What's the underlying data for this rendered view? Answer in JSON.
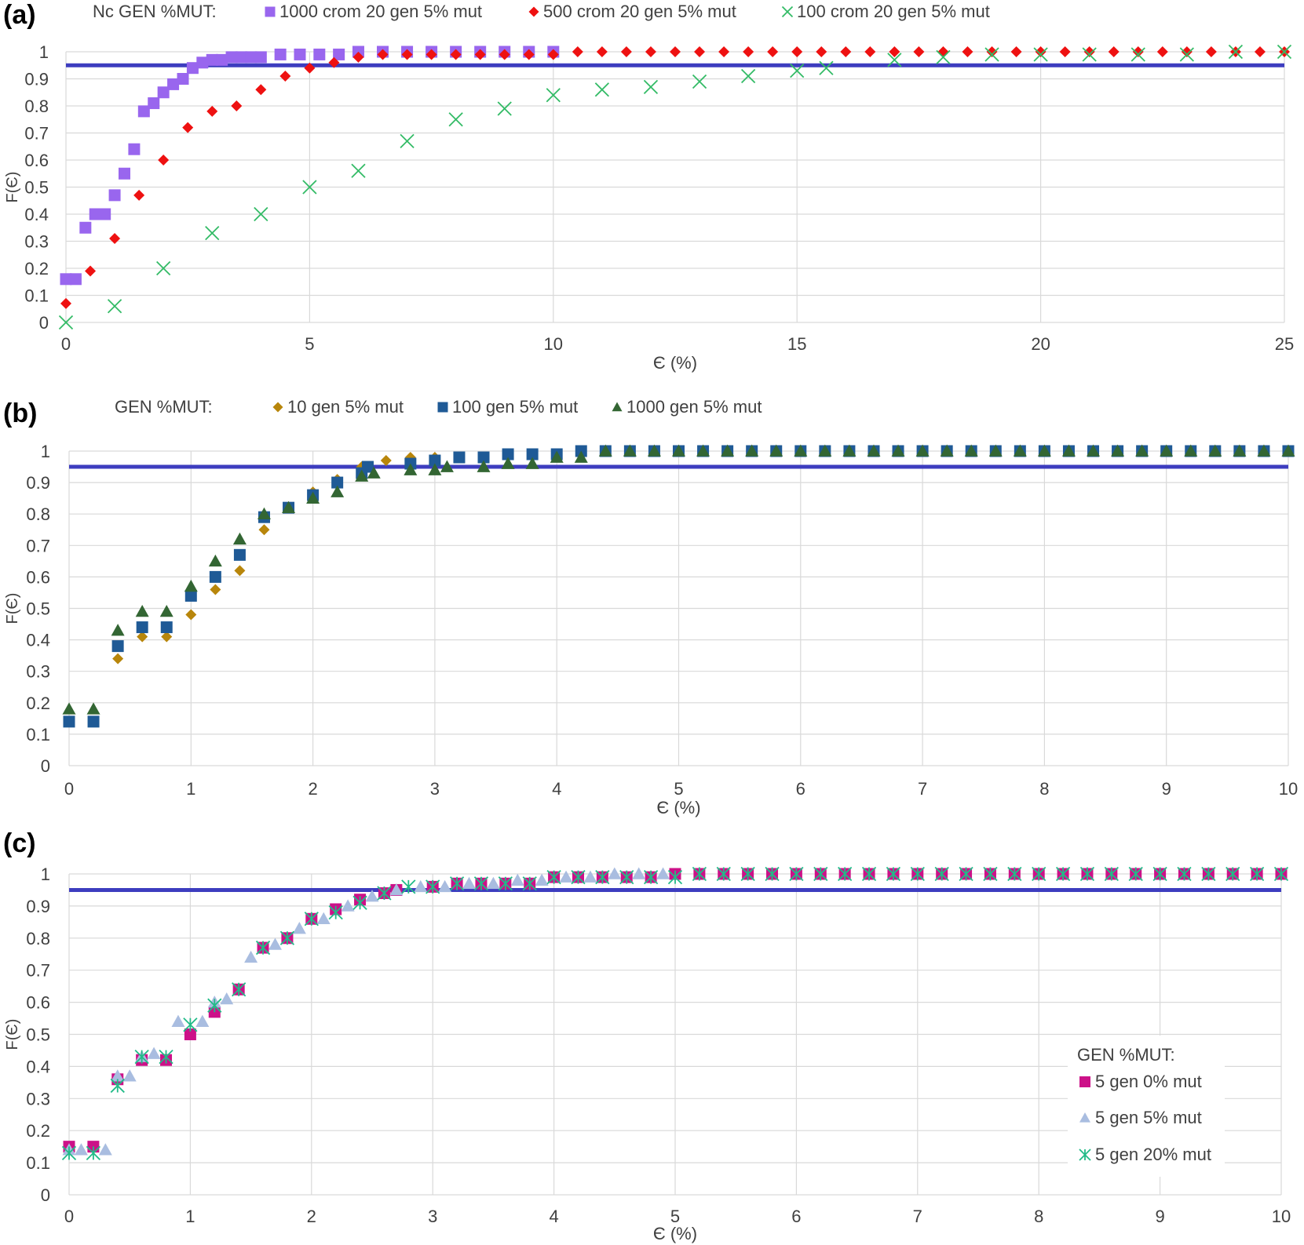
{
  "chart_data": [
    {
      "panel_label": "(a)",
      "type": "scatter",
      "xlabel": "Є (%)",
      "ylabel": "F(Є)",
      "xlim": [
        0,
        25
      ],
      "ylim": [
        0,
        1
      ],
      "xticks": [
        0,
        5,
        10,
        15,
        20,
        25
      ],
      "yticks": [
        0,
        0.1,
        0.2,
        0.3,
        0.4,
        0.5,
        0.6,
        0.7,
        0.8,
        0.9,
        1
      ],
      "grid": true,
      "legend_title": "Nc  GEN  %MUT:",
      "legend_position": "top",
      "reference_line": {
        "y": 0.95,
        "color": "#3d3dbf"
      },
      "series": [
        {
          "name": "1000 crom 20 gen 5% mut",
          "marker": "square",
          "color": "#9966ee",
          "x": [
            0,
            0.2,
            0.4,
            0.6,
            0.8,
            1.0,
            1.2,
            1.4,
            1.6,
            1.8,
            2.0,
            2.2,
            2.4,
            2.6,
            2.8,
            3.0,
            3.2,
            3.4,
            3.6,
            3.8,
            4.0,
            4.4,
            4.8,
            5.2,
            5.6,
            6.0,
            6.5,
            7.0,
            7.5,
            8.0,
            8.5,
            9.0,
            9.5,
            10.0
          ],
          "y": [
            0.16,
            0.16,
            0.35,
            0.4,
            0.4,
            0.47,
            0.55,
            0.64,
            0.78,
            0.81,
            0.85,
            0.88,
            0.9,
            0.94,
            0.96,
            0.97,
            0.97,
            0.98,
            0.98,
            0.98,
            0.98,
            0.99,
            0.99,
            0.99,
            0.99,
            1,
            1,
            1,
            1,
            1,
            1,
            1,
            1,
            1
          ]
        },
        {
          "name": "500 crom 20 gen 5% mut",
          "marker": "diamond",
          "color": "#ee1111",
          "x": [
            0,
            0.5,
            1.0,
            1.5,
            2.0,
            2.5,
            3.0,
            3.5,
            4.0,
            4.5,
            5.0,
            5.5,
            6.0,
            6.5,
            7.0,
            7.5,
            8.0,
            8.5,
            9.0,
            9.5,
            10.0,
            10.5,
            11.0,
            11.5,
            12.0,
            12.5,
            13.0,
            13.5,
            14.0,
            14.5,
            15.0,
            15.5,
            16.0,
            16.5,
            17.0,
            17.5,
            18.0,
            18.5,
            19.0,
            19.5,
            20.0,
            20.5,
            21.0,
            21.5,
            22.0,
            22.5,
            23.0,
            23.5,
            24.0,
            24.5,
            25.0
          ],
          "y": [
            0.07,
            0.19,
            0.31,
            0.47,
            0.6,
            0.72,
            0.78,
            0.8,
            0.86,
            0.91,
            0.94,
            0.96,
            0.98,
            0.99,
            0.99,
            0.99,
            0.99,
            0.99,
            0.99,
            0.99,
            0.99,
            1,
            1,
            1,
            1,
            1,
            1,
            1,
            1,
            1,
            1,
            1,
            1,
            1,
            1,
            1,
            1,
            1,
            1,
            1,
            1,
            1,
            1,
            1,
            1,
            1,
            1,
            1,
            1,
            1,
            1
          ]
        },
        {
          "name": "100 crom 20 gen 5% mut",
          "marker": "x",
          "color": "#33bb66",
          "x": [
            0,
            1,
            2,
            3,
            4,
            5,
            6,
            7,
            8,
            9,
            10,
            11,
            12,
            13,
            14,
            15,
            15.6,
            17,
            18,
            19,
            20,
            21,
            22,
            23,
            24,
            25
          ],
          "y": [
            0,
            0.06,
            0.2,
            0.33,
            0.4,
            0.5,
            0.56,
            0.67,
            0.75,
            0.79,
            0.84,
            0.86,
            0.87,
            0.89,
            0.91,
            0.93,
            0.94,
            0.97,
            0.98,
            0.99,
            0.99,
            0.99,
            0.99,
            0.99,
            1,
            1
          ]
        }
      ]
    },
    {
      "panel_label": "(b)",
      "type": "scatter",
      "xlabel": "Є (%)",
      "ylabel": "F(Є)",
      "xlim": [
        0,
        10
      ],
      "ylim": [
        0,
        1
      ],
      "xticks": [
        0,
        1,
        2,
        3,
        4,
        5,
        6,
        7,
        8,
        9,
        10
      ],
      "yticks": [
        0,
        0.1,
        0.2,
        0.3,
        0.4,
        0.5,
        0.6,
        0.7,
        0.8,
        0.9,
        1
      ],
      "grid": true,
      "legend_title": "GEN  %MUT:",
      "legend_position": "top",
      "reference_line": {
        "y": 0.95,
        "color": "#3d3dbf"
      },
      "series": [
        {
          "name": "10 gen 5% mut",
          "marker": "diamond",
          "color": "#b8860b",
          "x": [
            0.4,
            0.6,
            0.8,
            1.0,
            1.2,
            1.4,
            1.6,
            1.8,
            2.0,
            2.2,
            2.4,
            2.6,
            2.8,
            3.0,
            3.2,
            3.4,
            3.6,
            3.8,
            4.0
          ],
          "y": [
            0.34,
            0.41,
            0.41,
            0.48,
            0.56,
            0.62,
            0.75,
            0.82,
            0.87,
            0.91,
            0.95,
            0.97,
            0.98,
            0.98,
            0.98,
            0.98,
            0.99,
            0.99,
            0.99
          ]
        },
        {
          "name": "100 gen 5% mut",
          "marker": "square",
          "color": "#1f5a96",
          "x": [
            0,
            0.2,
            0.4,
            0.6,
            0.8,
            1.0,
            1.2,
            1.4,
            1.6,
            1.8,
            2.0,
            2.2,
            2.4,
            2.45,
            2.8,
            3.0,
            3.2,
            3.4,
            3.6,
            3.8,
            4.0,
            4.2,
            4.4,
            4.6,
            4.8,
            5.0,
            5.2,
            5.4,
            5.6,
            5.8,
            6.0,
            6.2,
            6.4,
            6.6,
            6.8,
            7.0,
            7.2,
            7.4,
            7.6,
            7.8,
            8.0,
            8.2,
            8.4,
            8.6,
            8.8,
            9.0,
            9.2,
            9.4,
            9.6,
            9.8,
            10.0
          ],
          "y": [
            0.14,
            0.14,
            0.38,
            0.44,
            0.44,
            0.54,
            0.6,
            0.67,
            0.79,
            0.82,
            0.86,
            0.9,
            0.93,
            0.95,
            0.96,
            0.97,
            0.98,
            0.98,
            0.99,
            0.99,
            0.99,
            1,
            1,
            1,
            1,
            1,
            1,
            1,
            1,
            1,
            1,
            1,
            1,
            1,
            1,
            1,
            1,
            1,
            1,
            1,
            1,
            1,
            1,
            1,
            1,
            1,
            1,
            1,
            1,
            1,
            1
          ]
        },
        {
          "name": "1000 gen 5% mut",
          "marker": "triangle",
          "color": "#336633",
          "x": [
            0,
            0.2,
            0.4,
            0.6,
            0.8,
            1.0,
            1.2,
            1.4,
            1.6,
            1.8,
            2.0,
            2.2,
            2.4,
            2.5,
            2.8,
            3.0,
            3.1,
            3.4,
            3.6,
            3.8,
            4.0,
            4.2,
            4.4,
            4.6,
            4.8,
            5.0,
            5.2,
            5.4,
            5.6,
            5.8,
            6.0,
            6.2,
            6.4,
            6.6,
            6.8,
            7.0,
            7.2,
            7.4,
            7.6,
            7.8,
            8.0,
            8.2,
            8.4,
            8.6,
            8.8,
            9.0,
            9.2,
            9.4,
            9.6,
            9.8,
            10.0
          ],
          "y": [
            0.18,
            0.18,
            0.43,
            0.49,
            0.49,
            0.57,
            0.65,
            0.72,
            0.8,
            0.82,
            0.85,
            0.87,
            0.92,
            0.93,
            0.94,
            0.94,
            0.95,
            0.95,
            0.96,
            0.96,
            0.98,
            0.98,
            1,
            1,
            1,
            1,
            1,
            1,
            1,
            1,
            1,
            1,
            1,
            1,
            1,
            1,
            1,
            1,
            1,
            1,
            1,
            1,
            1,
            1,
            1,
            1,
            1,
            1,
            1,
            1,
            1
          ]
        }
      ]
    },
    {
      "panel_label": "(c)",
      "type": "scatter",
      "xlabel": "Є (%)",
      "ylabel": "F(Є)",
      "xlim": [
        0,
        10
      ],
      "ylim": [
        0,
        1
      ],
      "xticks": [
        0,
        1,
        2,
        3,
        4,
        5,
        6,
        7,
        8,
        9,
        10
      ],
      "yticks": [
        0,
        0.1,
        0.2,
        0.3,
        0.4,
        0.5,
        0.6,
        0.7,
        0.8,
        0.9,
        1
      ],
      "grid": true,
      "legend_title": "GEN  %MUT:",
      "legend_position": "bottom-right",
      "reference_line": {
        "y": 0.95,
        "color": "#3d3dbf"
      },
      "series": [
        {
          "name": "5 gen 0% mut",
          "marker": "square",
          "color": "#cc1188",
          "x": [
            0,
            0.2,
            0.4,
            0.6,
            0.8,
            1.0,
            1.2,
            1.4,
            1.6,
            1.8,
            2.0,
            2.2,
            2.4,
            2.6,
            2.7,
            3.0,
            3.2,
            3.4,
            3.6,
            3.8,
            4.0,
            4.2,
            4.4,
            4.6,
            4.8,
            5.0,
            5.2,
            5.4,
            5.6,
            5.8,
            6.0,
            6.2,
            6.4,
            6.6,
            6.8,
            7.0,
            7.2,
            7.4,
            7.6,
            7.8,
            8.0,
            8.2,
            8.4,
            8.6,
            8.8,
            9.0,
            9.2,
            9.4,
            9.6,
            9.8,
            10.0
          ],
          "y": [
            0.15,
            0.15,
            0.36,
            0.42,
            0.42,
            0.5,
            0.57,
            0.64,
            0.77,
            0.8,
            0.86,
            0.89,
            0.92,
            0.94,
            0.95,
            0.96,
            0.97,
            0.97,
            0.97,
            0.97,
            0.99,
            0.99,
            0.99,
            0.99,
            0.99,
            1,
            1,
            1,
            1,
            1,
            1,
            1,
            1,
            1,
            1,
            1,
            1,
            1,
            1,
            1,
            1,
            1,
            1,
            1,
            1,
            1,
            1,
            1,
            1,
            1,
            1
          ]
        },
        {
          "name": "5 gen 5% mut",
          "marker": "triangle",
          "color": "#a9bde0",
          "x": [
            0,
            0.1,
            0.3,
            0.4,
            0.5,
            0.6,
            0.7,
            0.9,
            1.1,
            1.2,
            1.3,
            1.5,
            1.7,
            1.9,
            2.1,
            2.3,
            2.5,
            2.7,
            2.9,
            3.1,
            3.3,
            3.5,
            3.7,
            3.9,
            4.1,
            4.3,
            4.5,
            4.7,
            4.9
          ],
          "y": [
            0.14,
            0.14,
            0.14,
            0.37,
            0.37,
            0.43,
            0.44,
            0.54,
            0.54,
            0.6,
            0.61,
            0.74,
            0.78,
            0.83,
            0.86,
            0.9,
            0.93,
            0.95,
            0.96,
            0.96,
            0.97,
            0.97,
            0.98,
            0.98,
            0.99,
            0.99,
            1,
            1,
            1
          ]
        },
        {
          "name": "5 gen 20% mut",
          "marker": "asterisk",
          "color": "#22bb88",
          "x": [
            0,
            0.2,
            0.4,
            0.6,
            0.8,
            1.0,
            1.2,
            1.4,
            1.6,
            1.8,
            2.0,
            2.2,
            2.4,
            2.6,
            2.8,
            3.0,
            3.2,
            3.4,
            3.6,
            3.8,
            4.0,
            4.2,
            4.4,
            4.6,
            4.8,
            5.0,
            5.2,
            5.4,
            5.6,
            5.8,
            6.0,
            6.2,
            6.4,
            6.6,
            6.8,
            7.0,
            7.2,
            7.4,
            7.6,
            7.8,
            8.0,
            8.2,
            8.4,
            8.6,
            8.8,
            9.0,
            9.2,
            9.4,
            9.6,
            9.8,
            10.0
          ],
          "y": [
            0.13,
            0.13,
            0.34,
            0.43,
            0.43,
            0.53,
            0.59,
            0.64,
            0.77,
            0.8,
            0.86,
            0.88,
            0.91,
            0.94,
            0.96,
            0.96,
            0.97,
            0.97,
            0.97,
            0.97,
            0.99,
            0.99,
            0.99,
            0.99,
            0.99,
            0.99,
            1,
            1,
            1,
            1,
            1,
            1,
            1,
            1,
            1,
            1,
            1,
            1,
            1,
            1,
            1,
            1,
            1,
            1,
            1,
            1,
            1,
            1,
            1,
            1,
            1
          ]
        }
      ]
    }
  ]
}
